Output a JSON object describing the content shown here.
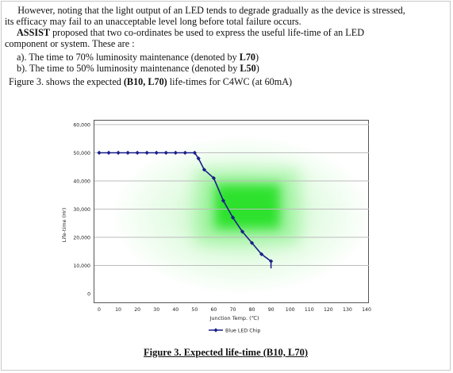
{
  "paragraphs": {
    "p1_line1": "However, noting that the light output of an LED tends to degrade gradually as the device is stressed,",
    "p1_line2": "its efficacy may fail to an unacceptable level long before total failure occurs.",
    "p2_bold": "ASSIST",
    "p2_line1_rest": " proposed that two co-ordinates be used to express the useful life-time of an LED",
    "p2_line2": "component or system. These are :",
    "item_a_text": "a). The time to 70% luminosity maintenance (denoted by ",
    "item_a_bold": "L70",
    "item_a_end": ")",
    "item_b_text": "b). The time to 50% luminosity maintenance (denoted by ",
    "item_b_bold": "L50",
    "item_b_end": ")",
    "fig_text_start": "Figure 3. shows the expected ",
    "fig_text_bold": "(B10, L70)",
    "fig_text_end": " life-times for C4WC  (at 60mA)"
  },
  "caption": "Figure 3.  Expected life-time (B10, L70)",
  "chart_data": {
    "type": "line",
    "xlabel": "Junction Temp. (℃)",
    "ylabel": "Life-time (Hr)",
    "x_ticks": [
      "0",
      "10",
      "20",
      "30",
      "40",
      "50",
      "60",
      "70",
      "80",
      "90",
      "100",
      "110",
      "120",
      "130",
      "140"
    ],
    "y_ticks": [
      "0",
      "10,000",
      "20,000",
      "30,000",
      "40,000",
      "50,000",
      "60,000"
    ],
    "xlim": [
      0,
      140
    ],
    "ylim": [
      0,
      60000
    ],
    "grid": true,
    "legend_position": "bottom-center",
    "colors": {
      "series": "#1a1f8a",
      "grid": "#bdbdbd",
      "glow": "#22e022"
    },
    "series": [
      {
        "name": "Blue LED Chip",
        "x": [
          0,
          5,
          10,
          15,
          20,
          25,
          30,
          35,
          40,
          45,
          50,
          52,
          55,
          60,
          65,
          70,
          75,
          80,
          85,
          90,
          90
        ],
        "y": [
          50000,
          50000,
          50000,
          50000,
          50000,
          50000,
          50000,
          50000,
          50000,
          50000,
          50000,
          48000,
          44000,
          41000,
          33000,
          27000,
          22000,
          18000,
          14000,
          11500,
          9000
        ]
      }
    ]
  }
}
